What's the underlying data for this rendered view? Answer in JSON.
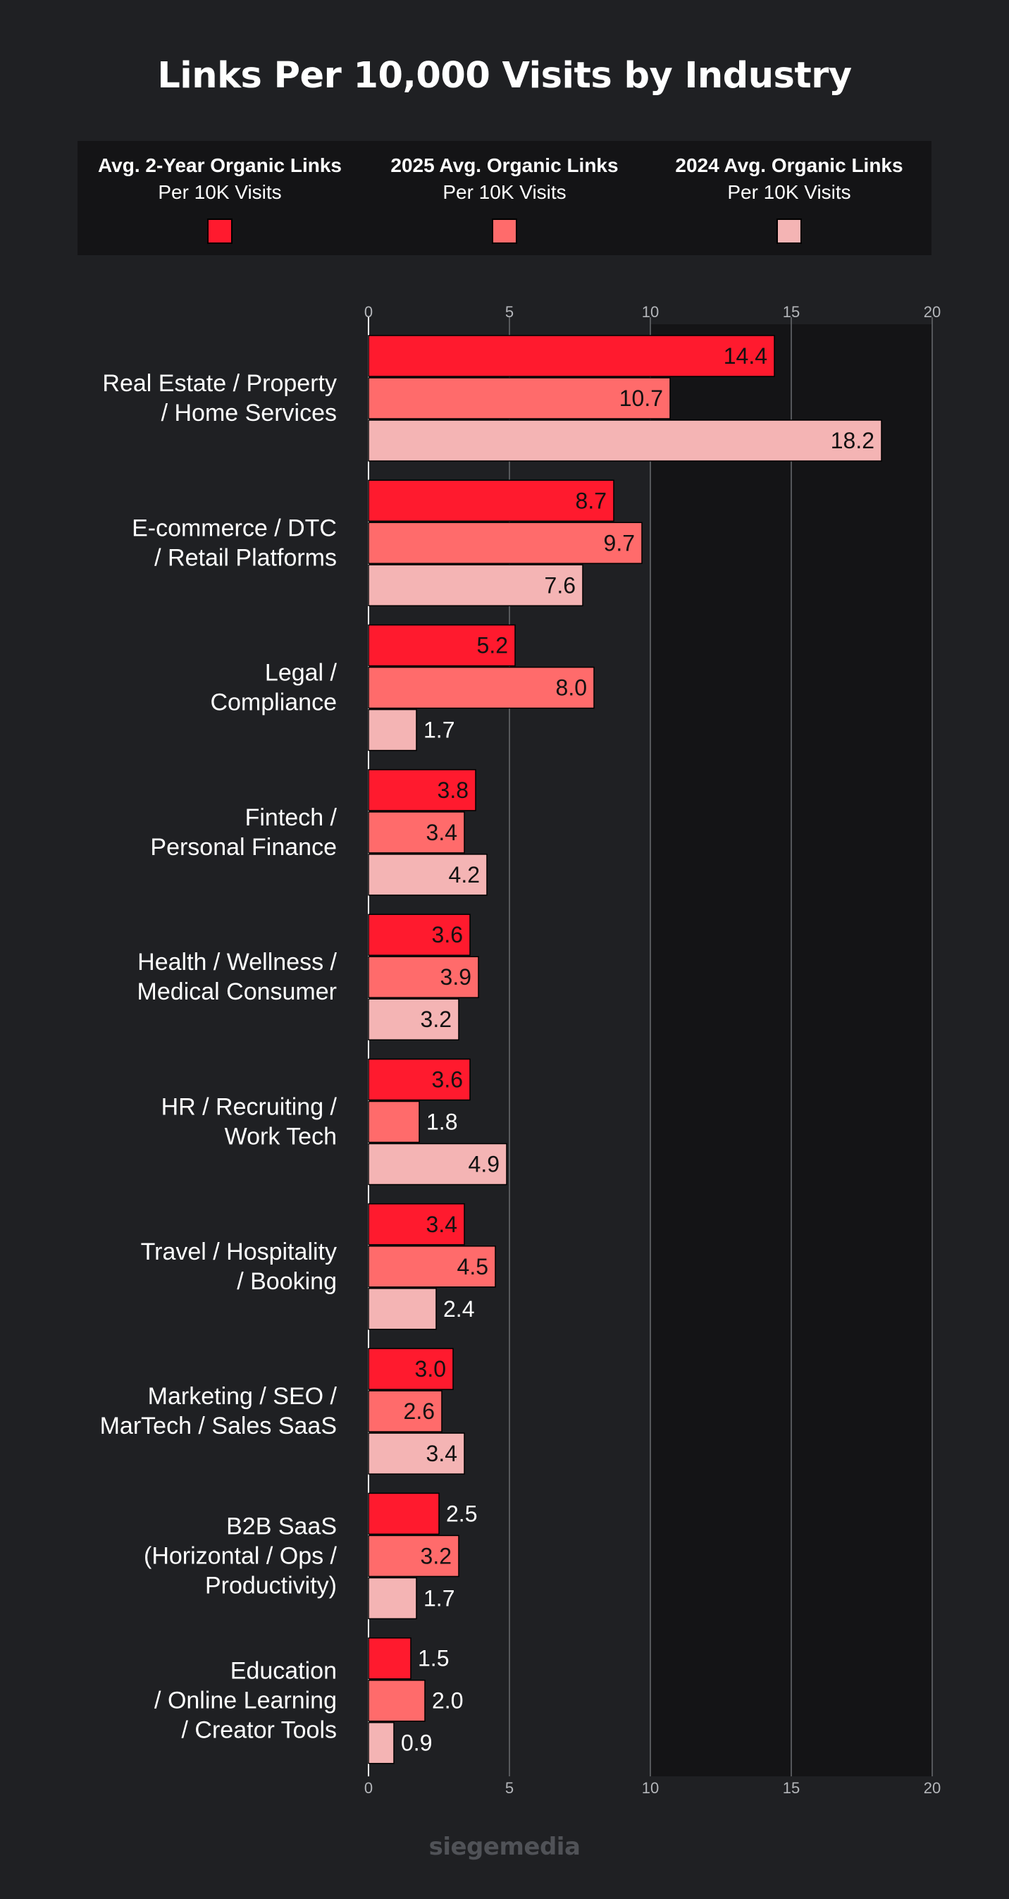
{
  "title": "Links Per 10,000 Visits by Industry",
  "footer": {
    "brand": "siegemedia"
  },
  "legend": [
    {
      "name": "Avg. 2-Year Organic Links",
      "sub": "Per 10K Visits",
      "color": "#ff1a2e"
    },
    {
      "name": "2025 Avg. Organic Links",
      "sub": "Per 10K Visits",
      "color": "#ff6b6b"
    },
    {
      "name": "2024 Avg. Organic Links",
      "sub": "Per 10K Visits",
      "color": "#f4b4b4"
    }
  ],
  "chart_data": {
    "type": "bar",
    "orientation": "horizontal",
    "xlim": [
      0,
      20
    ],
    "ticks": [
      "0",
      "5",
      "10",
      "15",
      "20"
    ],
    "tick_values": [
      0,
      5,
      10,
      15,
      20
    ],
    "categories": [
      [
        "Real Estate / Property",
        "/ Home Services"
      ],
      [
        "E-commerce / DTC",
        "/ Retail Platforms"
      ],
      [
        "Legal /",
        "Compliance"
      ],
      [
        "Fintech /",
        "Personal Finance"
      ],
      [
        "Health / Wellness /",
        "Medical Consumer"
      ],
      [
        "HR / Recruiting /",
        "Work Tech"
      ],
      [
        "Travel / Hospitality",
        "/ Booking"
      ],
      [
        "Marketing / SEO /",
        "MarTech / Sales SaaS"
      ],
      [
        "B2B SaaS",
        "(Horizontal / Ops /",
        "Productivity)"
      ],
      [
        "Education",
        "/ Online Learning",
        "/ Creator Tools"
      ]
    ],
    "series": [
      {
        "name": "Avg. 2-Year Organic Links Per 10K Visits",
        "color": "#ff1a2e",
        "values": [
          14.4,
          8.7,
          5.2,
          3.8,
          3.6,
          3.6,
          3.4,
          3.0,
          2.5,
          1.5
        ],
        "labels": [
          "14.4",
          "8.7",
          "5.2",
          "3.8",
          "3.6",
          "3.6",
          "3.4",
          "3.0",
          "2.5",
          "1.5"
        ]
      },
      {
        "name": "2025 Avg. Organic Links Per 10K Visits",
        "color": "#ff6b6b",
        "values": [
          10.7,
          9.7,
          8.0,
          3.4,
          3.9,
          1.8,
          4.5,
          2.6,
          3.2,
          2.0
        ],
        "labels": [
          "10.7",
          "9.7",
          "8.0",
          "3.4",
          "3.9",
          "1.8",
          "4.5",
          "2.6",
          "3.2",
          "2.0"
        ]
      },
      {
        "name": "2024 Avg. Organic Links Per 10K Visits",
        "color": "#f4b4b4",
        "values": [
          18.2,
          7.6,
          1.7,
          4.2,
          3.2,
          4.9,
          2.4,
          3.4,
          1.7,
          0.9
        ],
        "labels": [
          "18.2",
          "7.6",
          "1.7",
          "4.2",
          "3.2",
          "4.9",
          "2.4",
          "3.4",
          "1.7",
          "0.9"
        ]
      }
    ],
    "grid": true,
    "legend_position": "top"
  }
}
